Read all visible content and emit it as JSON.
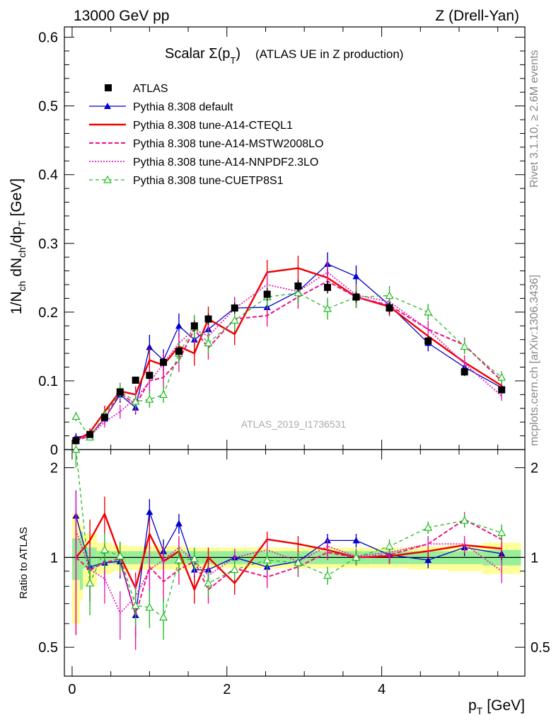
{
  "header": {
    "left": "13000 GeV pp",
    "right": "Z (Drell-Yan)",
    "side_rivet": "Rivet 3.1.10, ≥ 2.6M events",
    "side_mcplots": "mcplots.cern.ch [arXiv:1306.3436]"
  },
  "chart_data": {
    "type": "line",
    "title_main": "Scalar Σ(p",
    "title_sub": "T",
    "title_close": ")",
    "title_rest": "(ATLAS UE in Z production)",
    "watermark": "ATLAS_2019_I1736531",
    "xlabel": "p",
    "xlabel_sub": "T",
    "xlabel_unit": "[GeV]",
    "ylabel": "1/N",
    "ylabel_parts": [
      "1/N",
      "ch",
      " dN",
      "ch",
      "/dp",
      "T",
      " [GeV]"
    ],
    "ratio_ylabel": "Ratio to ATLAS",
    "xlim": [
      -0.1,
      5.85
    ],
    "ylim": [
      0,
      0.615
    ],
    "ratio_ylim": [
      0.4,
      2.3
    ],
    "x_ticks": [
      {
        "v": 0,
        "label": "0"
      },
      {
        "v": 2,
        "label": "2"
      },
      {
        "v": 4,
        "label": "4"
      }
    ],
    "y_ticks": [
      {
        "v": 0,
        "label": "0"
      },
      {
        "v": 0.1,
        "label": "0.1"
      },
      {
        "v": 0.2,
        "label": "0.2"
      },
      {
        "v": 0.3,
        "label": "0.3"
      },
      {
        "v": 0.4,
        "label": "0.4"
      },
      {
        "v": 0.5,
        "label": "0.5"
      },
      {
        "v": 0.6,
        "label": "0.6"
      }
    ],
    "ratio_y_ticks": [
      {
        "v": 0.5,
        "label": "0.5"
      },
      {
        "v": 1,
        "label": "1"
      },
      {
        "v": 2,
        "label": "2"
      }
    ],
    "x": [
      0.05,
      0.23,
      0.42,
      0.62,
      0.82,
      1.0,
      1.18,
      1.38,
      1.58,
      1.76,
      2.1,
      2.52,
      2.92,
      3.3,
      3.67,
      4.1,
      4.6,
      5.07,
      5.55
    ],
    "data": {
      "name": "ATLAS",
      "values": [
        0.013,
        0.022,
        0.047,
        0.084,
        0.101,
        0.108,
        0.127,
        0.143,
        0.18,
        0.19,
        0.206,
        0.226,
        0.238,
        0.236,
        0.222,
        0.206,
        0.158,
        0.113,
        0.087
      ],
      "errors": [
        0.003,
        0.003,
        0.004,
        0.005,
        0.005,
        0.006,
        0.006,
        0.007,
        0.008,
        0.008,
        0.008,
        0.009,
        0.009,
        0.009,
        0.008,
        0.008,
        0.007,
        0.006,
        0.005
      ]
    },
    "series": [
      {
        "name": "Pythia 8.308 default",
        "color": "#0000cc",
        "dash": "",
        "marker": "triangle-filled",
        "width": 1.3,
        "values": [
          0.018,
          0.021,
          0.045,
          0.08,
          0.061,
          0.149,
          0.13,
          0.18,
          0.16,
          0.175,
          0.206,
          0.207,
          0.23,
          0.27,
          0.252,
          0.21,
          0.155,
          0.12,
          0.09
        ],
        "errors": [
          0.006,
          0.006,
          0.008,
          0.012,
          0.01,
          0.018,
          0.016,
          0.018,
          0.018,
          0.018,
          0.016,
          0.016,
          0.017,
          0.017,
          0.016,
          0.014,
          0.012,
          0.01,
          0.008
        ]
      },
      {
        "name": "Pythia 8.308 tune-A14-CTEQL1",
        "color": "#ee0000",
        "dash": "",
        "marker": "none",
        "width": 2.4,
        "values": [
          0.013,
          0.025,
          0.055,
          0.085,
          0.08,
          0.13,
          0.123,
          0.15,
          0.14,
          0.19,
          0.168,
          0.258,
          0.264,
          0.25,
          0.222,
          0.208,
          0.165,
          0.127,
          0.093
        ],
        "errors": [
          0.006,
          0.006,
          0.009,
          0.012,
          0.012,
          0.018,
          0.016,
          0.018,
          0.018,
          0.018,
          0.016,
          0.018,
          0.018,
          0.017,
          0.016,
          0.014,
          0.012,
          0.01,
          0.008
        ]
      },
      {
        "name": "Pythia 8.308 tune-A14-MSTW2008LO",
        "color": "#ee1188",
        "dash": "6,3",
        "marker": "none",
        "width": 2.0,
        "values": [
          0.013,
          0.02,
          0.045,
          0.083,
          0.065,
          0.1,
          0.105,
          0.13,
          0.175,
          0.148,
          0.19,
          0.195,
          0.222,
          0.245,
          0.222,
          0.21,
          0.175,
          0.152,
          0.1
        ],
        "errors": [
          0.006,
          0.006,
          0.009,
          0.012,
          0.012,
          0.016,
          0.016,
          0.017,
          0.018,
          0.017,
          0.016,
          0.016,
          0.017,
          0.017,
          0.016,
          0.014,
          0.012,
          0.011,
          0.009
        ]
      },
      {
        "name": "Pythia 8.308 tune-A14-NNPDF2.3LO",
        "color": "#dd22bb",
        "dash": "2,2",
        "marker": "none",
        "width": 1.8,
        "values": [
          0.016,
          0.02,
          0.04,
          0.055,
          0.075,
          0.098,
          0.125,
          0.155,
          0.175,
          0.165,
          0.205,
          0.24,
          0.23,
          0.258,
          0.225,
          0.215,
          0.175,
          0.125,
          0.078
        ],
        "errors": [
          0.006,
          0.006,
          0.008,
          0.01,
          0.012,
          0.016,
          0.016,
          0.017,
          0.018,
          0.017,
          0.016,
          0.017,
          0.017,
          0.017,
          0.016,
          0.014,
          0.012,
          0.01,
          0.007
        ]
      },
      {
        "name": "Pythia 8.308 tune-CUETP8S1",
        "color": "#22bb22",
        "dash": "5,4",
        "marker": "triangle-open",
        "width": 1.3,
        "values": [
          0.048,
          0.018,
          0.05,
          0.085,
          0.07,
          0.073,
          0.08,
          0.14,
          0.178,
          0.155,
          0.188,
          0.222,
          0.228,
          0.205,
          0.222,
          0.224,
          0.2,
          0.15,
          0.105
        ],
        "errors": [
          0.007,
          0.005,
          0.008,
          0.011,
          0.01,
          0.012,
          0.012,
          0.016,
          0.018,
          0.016,
          0.016,
          0.016,
          0.016,
          0.016,
          0.016,
          0.014,
          0.012,
          0.011,
          0.009
        ]
      }
    ],
    "ratio": {
      "band_x": [
        0.0,
        0.1,
        0.14,
        0.32,
        0.52,
        0.72,
        0.92,
        1.09,
        1.28,
        1.48,
        1.67,
        1.86,
        2.32,
        2.72,
        3.12,
        3.48,
        3.86,
        4.35,
        4.85,
        5.3,
        5.8
      ],
      "yellow_half": [
        0.4,
        0.28,
        0.2,
        0.12,
        0.1,
        0.09,
        0.09,
        0.09,
        0.09,
        0.08,
        0.08,
        0.08,
        0.08,
        0.08,
        0.08,
        0.08,
        0.08,
        0.09,
        0.1,
        0.12
      ],
      "green_half": [
        0.16,
        0.22,
        0.08,
        0.05,
        0.05,
        0.05,
        0.05,
        0.05,
        0.05,
        0.05,
        0.05,
        0.05,
        0.05,
        0.05,
        0.05,
        0.05,
        0.05,
        0.05,
        0.05,
        0.06
      ],
      "series": [
        {
          "values": [
            1.38,
            0.93,
            0.96,
            0.97,
            0.64,
            1.42,
            1.05,
            1.3,
            0.91,
            0.91,
            1.0,
            0.93,
            0.97,
            1.14,
            1.14,
            1.02,
            0.98,
            1.08,
            1.03
          ],
          "errors": [
            0.3,
            0.2,
            0.12,
            0.12,
            0.1,
            0.15,
            0.1,
            0.1,
            0.08,
            0.08,
            0.07,
            0.06,
            0.06,
            0.06,
            0.06,
            0.06,
            0.06,
            0.07,
            0.08
          ]
        },
        {
          "values": [
            1.0,
            1.14,
            1.4,
            1.01,
            0.79,
            1.2,
            0.97,
            1.05,
            0.78,
            1.0,
            0.82,
            1.15,
            1.11,
            1.06,
            1.0,
            1.01,
            1.05,
            1.1,
            1.07
          ],
          "errors": [
            0.45,
            0.2,
            0.2,
            0.12,
            0.1,
            0.15,
            0.12,
            0.1,
            0.08,
            0.08,
            0.07,
            0.07,
            0.07,
            0.06,
            0.06,
            0.06,
            0.06,
            0.07,
            0.08
          ]
        },
        {
          "values": [
            1.0,
            0.91,
            0.96,
            0.99,
            0.64,
            0.93,
            0.83,
            0.91,
            0.97,
            0.78,
            0.92,
            0.86,
            0.93,
            1.04,
            1.0,
            1.02,
            1.11,
            1.34,
            1.15
          ],
          "errors": [
            0.45,
            0.2,
            0.15,
            0.12,
            0.15,
            0.15,
            0.12,
            0.1,
            0.1,
            0.08,
            0.07,
            0.07,
            0.07,
            0.06,
            0.06,
            0.06,
            0.07,
            0.08,
            0.1
          ]
        },
        {
          "values": [
            1.23,
            0.91,
            0.85,
            0.65,
            0.74,
            0.91,
            0.98,
            1.08,
            0.97,
            0.87,
            1.0,
            1.06,
            0.97,
            1.09,
            1.01,
            1.04,
            1.11,
            1.11,
            0.9
          ],
          "errors": [
            0.45,
            0.2,
            0.15,
            0.12,
            0.12,
            0.15,
            0.12,
            0.1,
            0.09,
            0.08,
            0.07,
            0.07,
            0.07,
            0.06,
            0.06,
            0.06,
            0.07,
            0.07,
            0.08
          ]
        },
        {
          "values": [
            2.4,
            0.82,
            1.06,
            1.01,
            0.69,
            0.68,
            0.63,
            0.98,
            0.99,
            0.82,
            0.91,
            0.98,
            0.96,
            0.87,
            1.0,
            1.09,
            1.26,
            1.33,
            1.21
          ],
          "errors": [
            0.4,
            0.18,
            0.15,
            0.12,
            0.1,
            0.1,
            0.1,
            0.1,
            0.09,
            0.08,
            0.07,
            0.07,
            0.07,
            0.06,
            0.06,
            0.06,
            0.06,
            0.07,
            0.08
          ]
        }
      ]
    },
    "legend_placement": "top-left"
  }
}
